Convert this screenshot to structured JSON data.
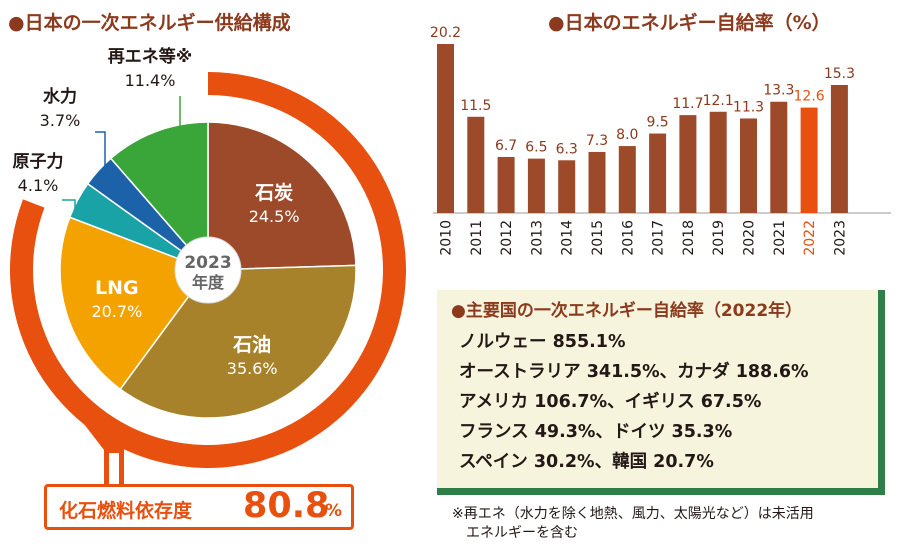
{
  "left_title": "●日本の一次エネルギー供給構成",
  "right_title": "●日本のエネルギー自給率（%）",
  "chart_data": [
    {
      "type": "pie",
      "title": "●日本の一次エネルギー供給構成",
      "center_label": [
        "2023",
        "年度"
      ],
      "slices": [
        {
          "name": "石炭",
          "value": 24.5,
          "label": "24.5%",
          "color": "#9c4a2a"
        },
        {
          "name": "石油",
          "value": 35.6,
          "label": "35.6%",
          "color": "#a8822a"
        },
        {
          "name": "LNG",
          "value": 20.7,
          "label": "20.7%",
          "color": "#f4a200"
        },
        {
          "name": "原子力",
          "value": 4.1,
          "label": "4.1%",
          "color": "#1aa3a6"
        },
        {
          "name": "水力",
          "value": 3.7,
          "label": "3.7%",
          "color": "#1b62a8"
        },
        {
          "name": "再エネ等※",
          "value": 11.4,
          "label": "11.4%",
          "color": "#3aa63a"
        }
      ],
      "ring_color": "#e8500f",
      "fossil_label": "化石燃料依存度",
      "fossil_value": "80.8",
      "fossil_unit": "%"
    },
    {
      "type": "bar",
      "title": "●日本のエネルギー自給率（%）",
      "categories": [
        "2010",
        "2011",
        "2012",
        "2013",
        "2014",
        "2015",
        "2016",
        "2017",
        "2018",
        "2019",
        "2020",
        "2021",
        "2022",
        "2023"
      ],
      "values": [
        20.2,
        11.5,
        6.7,
        6.5,
        6.3,
        7.3,
        8.0,
        9.5,
        11.7,
        12.1,
        11.3,
        13.3,
        12.6,
        15.3
      ],
      "value_labels": [
        "20.2",
        "11.5",
        "6.7",
        "6.5",
        "6.3",
        "7.3",
        "8.0",
        "9.5",
        "11.7",
        "12.1",
        "11.3",
        "13.3",
        "12.6",
        "15.3"
      ],
      "highlight_index": 12,
      "bar_color": "#9c4a2a",
      "highlight_color": "#e8500f",
      "ylim": [
        0,
        20.2
      ]
    }
  ],
  "box": {
    "title": "●主要国の一次エネルギー自給率（2022年）",
    "lines": [
      "ノルウェー 855.1%",
      "オーストラリア 341.5%、カナダ 188.6%",
      "アメリカ 106.7%、イギリス 67.5%",
      "フランス 49.3%、ドイツ 35.3%",
      "スペイン 30.2%、韓国 20.7%"
    ]
  },
  "note": {
    "line1": "※再エネ（水力を除く地熱、風力、太陽光など）は未活用",
    "line2": "エネルギーを含む"
  }
}
